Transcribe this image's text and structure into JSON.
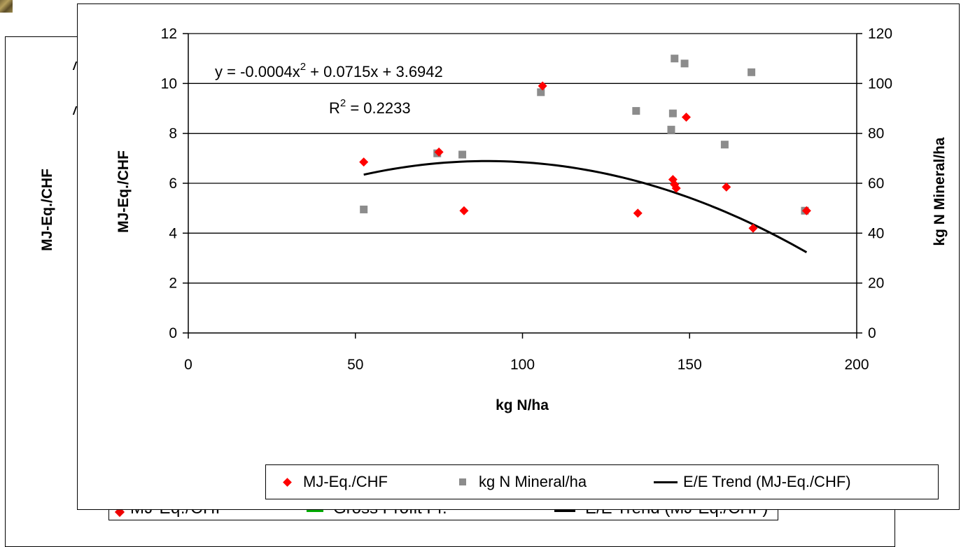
{
  "background": {
    "ylabel": "MJ-Eq./CHF",
    "legend": {
      "item1": "MJ-Eq./CHF",
      "item2": "Gross Profit Pr.",
      "item3": "E/E Trend (MJ-Eq./CHF)"
    }
  },
  "chart_data": {
    "type": "scatter",
    "xlabel": "kg N/ha",
    "ylabel": "MJ-Eq./CHF",
    "y2label": "kg N Mineral/ha",
    "xlim": [
      0,
      200
    ],
    "ylim": [
      0,
      12
    ],
    "y2lim": [
      0,
      120
    ],
    "xticks": [
      "0",
      "50",
      "100",
      "150",
      "200"
    ],
    "yticks": [
      "0",
      "2",
      "4",
      "6",
      "8",
      "10",
      "12"
    ],
    "y2ticks": [
      "0",
      "20",
      "40",
      "60",
      "80",
      "100",
      "120"
    ],
    "grid": "horizontal",
    "legend_position": "bottom",
    "equation": {
      "prefix": "y = -0.0004x",
      "exp": "2",
      "suffix": " + 0.0715x + 3.6942",
      "r2_prefix": "R",
      "r2_exp": "2",
      "r2_suffix": " = 0.2233"
    },
    "series": [
      {
        "name": "MJ-Eq./CHF",
        "axis": "left",
        "marker": "diamond",
        "color": "#ff0000",
        "points": [
          [
            52.5,
            6.85
          ],
          [
            75,
            7.25
          ],
          [
            82.5,
            4.9
          ],
          [
            106,
            9.9
          ],
          [
            134.5,
            4.8
          ],
          [
            145,
            6.15
          ],
          [
            145.5,
            5.95
          ],
          [
            146,
            5.8
          ],
          [
            149,
            8.65
          ],
          [
            161,
            5.85
          ],
          [
            169,
            4.2
          ],
          [
            185,
            4.9
          ]
        ]
      },
      {
        "name": "kg N Mineral/ha",
        "axis": "right",
        "marker": "square",
        "color": "#8c8c8c",
        "points": [
          [
            52.5,
            49.5
          ],
          [
            74.5,
            72
          ],
          [
            82,
            71.5
          ],
          [
            105.5,
            96.5
          ],
          [
            134,
            89
          ],
          [
            144.5,
            81.5
          ],
          [
            145,
            88
          ],
          [
            145.5,
            110
          ],
          [
            148.5,
            108
          ],
          [
            160.5,
            75.5
          ],
          [
            168.5,
            104.5
          ],
          [
            184.5,
            49
          ]
        ]
      },
      {
        "name": "E/E Trend (MJ-Eq./CHF)",
        "axis": "left",
        "type": "trendline",
        "color": "#000000",
        "coefficients": [
          -0.0004,
          0.0715,
          3.6942
        ],
        "x_range": [
          52.5,
          185
        ]
      }
    ]
  }
}
